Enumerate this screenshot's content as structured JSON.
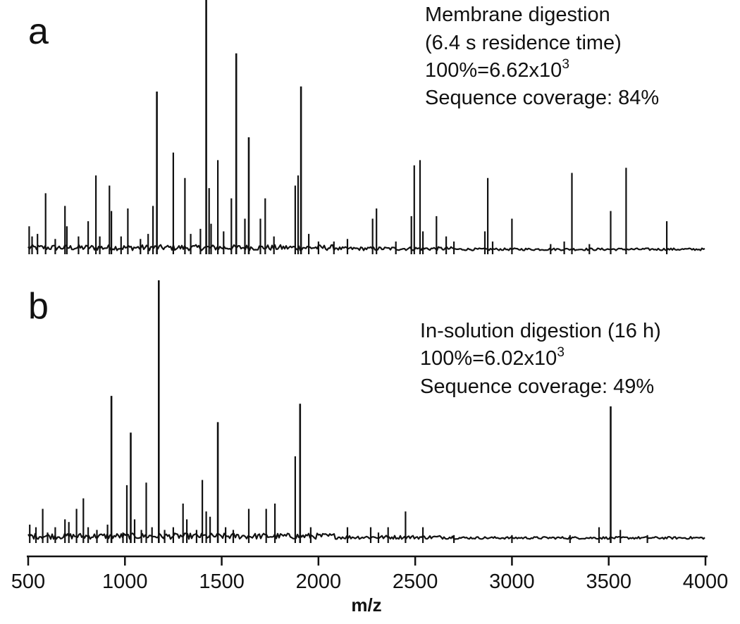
{
  "chart_data": [
    {
      "type": "line",
      "panel_label": "a",
      "annotation": {
        "line1": "Membrane digestion",
        "line2": "(6.4 s residence time)",
        "intensity_prefix": "100%=6.62x10",
        "intensity_exp": "3",
        "coverage": "Sequence coverage: 84%"
      },
      "xlim": [
        500,
        4000
      ],
      "ylim": [
        0,
        100
      ],
      "baseline": 1.5,
      "peaks": [
        {
          "mz": 505,
          "rel": 11
        },
        {
          "mz": 520,
          "rel": 7
        },
        {
          "mz": 548,
          "rel": 8
        },
        {
          "mz": 590,
          "rel": 24
        },
        {
          "mz": 640,
          "rel": 6
        },
        {
          "mz": 690,
          "rel": 19
        },
        {
          "mz": 700,
          "rel": 11
        },
        {
          "mz": 760,
          "rel": 7
        },
        {
          "mz": 810,
          "rel": 13
        },
        {
          "mz": 850,
          "rel": 31
        },
        {
          "mz": 870,
          "rel": 7
        },
        {
          "mz": 920,
          "rel": 27
        },
        {
          "mz": 930,
          "rel": 17
        },
        {
          "mz": 980,
          "rel": 7
        },
        {
          "mz": 1015,
          "rel": 18
        },
        {
          "mz": 1080,
          "rel": 6
        },
        {
          "mz": 1120,
          "rel": 8
        },
        {
          "mz": 1145,
          "rel": 19
        },
        {
          "mz": 1165,
          "rel": 64
        },
        {
          "mz": 1250,
          "rel": 40
        },
        {
          "mz": 1310,
          "rel": 30
        },
        {
          "mz": 1340,
          "rel": 8
        },
        {
          "mz": 1390,
          "rel": 10
        },
        {
          "mz": 1420,
          "rel": 100
        },
        {
          "mz": 1435,
          "rel": 26
        },
        {
          "mz": 1445,
          "rel": 12
        },
        {
          "mz": 1480,
          "rel": 37
        },
        {
          "mz": 1510,
          "rel": 9
        },
        {
          "mz": 1550,
          "rel": 22
        },
        {
          "mz": 1575,
          "rel": 79
        },
        {
          "mz": 1620,
          "rel": 14
        },
        {
          "mz": 1640,
          "rel": 46
        },
        {
          "mz": 1700,
          "rel": 14
        },
        {
          "mz": 1725,
          "rel": 22
        },
        {
          "mz": 1770,
          "rel": 7
        },
        {
          "mz": 1880,
          "rel": 27
        },
        {
          "mz": 1895,
          "rel": 31
        },
        {
          "mz": 1910,
          "rel": 66
        },
        {
          "mz": 1950,
          "rel": 8
        },
        {
          "mz": 2000,
          "rel": 5
        },
        {
          "mz": 2080,
          "rel": 5
        },
        {
          "mz": 2150,
          "rel": 6
        },
        {
          "mz": 2280,
          "rel": 14
        },
        {
          "mz": 2300,
          "rel": 18
        },
        {
          "mz": 2400,
          "rel": 5
        },
        {
          "mz": 2480,
          "rel": 15
        },
        {
          "mz": 2495,
          "rel": 35
        },
        {
          "mz": 2525,
          "rel": 37
        },
        {
          "mz": 2540,
          "rel": 9
        },
        {
          "mz": 2610,
          "rel": 15
        },
        {
          "mz": 2660,
          "rel": 7
        },
        {
          "mz": 2700,
          "rel": 5
        },
        {
          "mz": 2860,
          "rel": 9
        },
        {
          "mz": 2875,
          "rel": 30
        },
        {
          "mz": 2900,
          "rel": 5
        },
        {
          "mz": 3000,
          "rel": 14
        },
        {
          "mz": 3200,
          "rel": 4
        },
        {
          "mz": 3270,
          "rel": 5
        },
        {
          "mz": 3310,
          "rel": 32
        },
        {
          "mz": 3400,
          "rel": 4
        },
        {
          "mz": 3510,
          "rel": 17
        },
        {
          "mz": 3590,
          "rel": 34
        },
        {
          "mz": 3800,
          "rel": 13
        }
      ]
    },
    {
      "type": "line",
      "panel_label": "b",
      "annotation": {
        "line1": "In-solution digestion (16 h)",
        "intensity_prefix": "100%=6.02x10",
        "intensity_exp": "3",
        "coverage": "Sequence coverage: 49%"
      },
      "xlim": [
        500,
        4000
      ],
      "ylim": [
        0,
        100
      ],
      "baseline": 1.5,
      "peaks": [
        {
          "mz": 508,
          "rel": 7
        },
        {
          "mz": 540,
          "rel": 6
        },
        {
          "mz": 575,
          "rel": 13
        },
        {
          "mz": 600,
          "rel": 4
        },
        {
          "mz": 640,
          "rel": 6
        },
        {
          "mz": 690,
          "rel": 9
        },
        {
          "mz": 710,
          "rel": 8
        },
        {
          "mz": 750,
          "rel": 13
        },
        {
          "mz": 785,
          "rel": 17
        },
        {
          "mz": 810,
          "rel": 6
        },
        {
          "mz": 855,
          "rel": 5
        },
        {
          "mz": 910,
          "rel": 7
        },
        {
          "mz": 930,
          "rel": 56
        },
        {
          "mz": 990,
          "rel": 4
        },
        {
          "mz": 1010,
          "rel": 22
        },
        {
          "mz": 1030,
          "rel": 42
        },
        {
          "mz": 1050,
          "rel": 9
        },
        {
          "mz": 1085,
          "rel": 5
        },
        {
          "mz": 1110,
          "rel": 23
        },
        {
          "mz": 1140,
          "rel": 6
        },
        {
          "mz": 1175,
          "rel": 100
        },
        {
          "mz": 1205,
          "rel": 5
        },
        {
          "mz": 1250,
          "rel": 6
        },
        {
          "mz": 1300,
          "rel": 15
        },
        {
          "mz": 1320,
          "rel": 9
        },
        {
          "mz": 1370,
          "rel": 5
        },
        {
          "mz": 1400,
          "rel": 24
        },
        {
          "mz": 1420,
          "rel": 12
        },
        {
          "mz": 1440,
          "rel": 10
        },
        {
          "mz": 1480,
          "rel": 46
        },
        {
          "mz": 1520,
          "rel": 6
        },
        {
          "mz": 1560,
          "rel": 5
        },
        {
          "mz": 1640,
          "rel": 13
        },
        {
          "mz": 1730,
          "rel": 13
        },
        {
          "mz": 1775,
          "rel": 15
        },
        {
          "mz": 1880,
          "rel": 33
        },
        {
          "mz": 1905,
          "rel": 53
        },
        {
          "mz": 1960,
          "rel": 6
        },
        {
          "mz": 2150,
          "rel": 6
        },
        {
          "mz": 2270,
          "rel": 6
        },
        {
          "mz": 2310,
          "rel": 4
        },
        {
          "mz": 2360,
          "rel": 6
        },
        {
          "mz": 2450,
          "rel": 12
        },
        {
          "mz": 2540,
          "rel": 6
        },
        {
          "mz": 2700,
          "rel": 3
        },
        {
          "mz": 3000,
          "rel": 3
        },
        {
          "mz": 3300,
          "rel": 3
        },
        {
          "mz": 3450,
          "rel": 6
        },
        {
          "mz": 3510,
          "rel": 52
        },
        {
          "mz": 3560,
          "rel": 5
        },
        {
          "mz": 3700,
          "rel": 3
        }
      ]
    }
  ],
  "axis": {
    "xlabel": "m/z",
    "ticks": [
      "500",
      "1000",
      "1500",
      "2000",
      "2500",
      "3000",
      "3500",
      "4000"
    ],
    "tick_values": [
      500,
      1000,
      1500,
      2000,
      2500,
      3000,
      3500,
      4000
    ]
  }
}
